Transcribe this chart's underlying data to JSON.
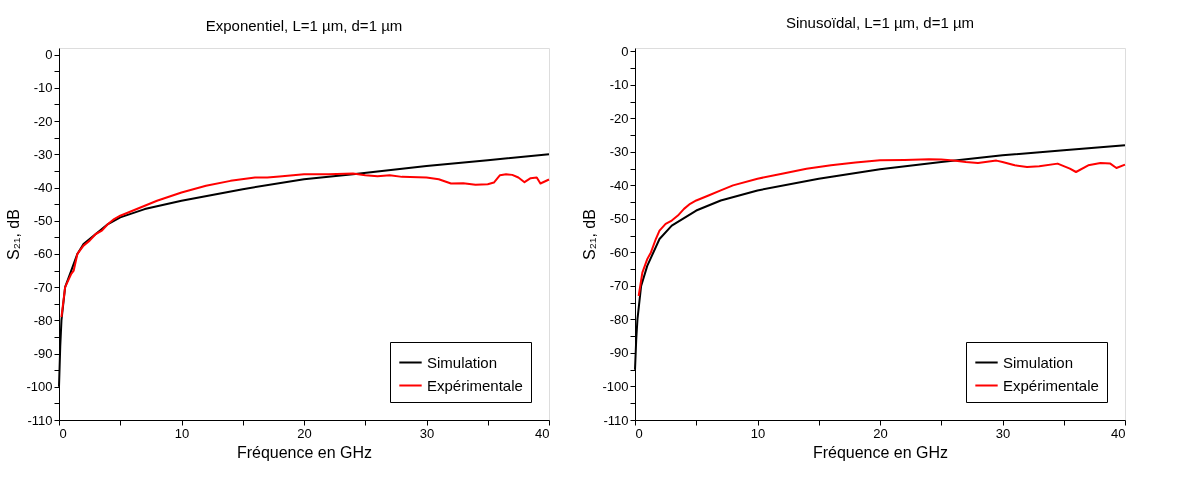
{
  "chart_data": [
    {
      "type": "line",
      "title": "Exponentiel, L=1 µm, d=1 µm",
      "xlabel": "Fréquence en GHz",
      "ylabel": "S₂₁, dB",
      "xlim": [
        0,
        40
      ],
      "ylim": [
        -110,
        2
      ],
      "xticks": [
        0,
        {
          "value": 5,
          "label": null
        },
        10,
        {
          "value": 15,
          "label": null
        },
        20,
        {
          "value": 25,
          "label": null
        },
        30,
        {
          "value": 35,
          "label": null
        },
        40
      ],
      "yticks": [
        -110,
        {
          "value": -105,
          "label": null
        },
        -100,
        {
          "value": -95,
          "label": null
        },
        -90,
        {
          "value": -85,
          "label": null
        },
        -80,
        {
          "value": -75,
          "label": null
        },
        -70,
        {
          "value": -65,
          "label": null
        },
        -60,
        {
          "value": -55,
          "label": null
        },
        -50,
        {
          "value": -45,
          "label": null
        },
        -40,
        {
          "value": -35,
          "label": null
        },
        -30,
        {
          "value": -25,
          "label": null
        },
        -20,
        {
          "value": -15,
          "label": null
        },
        -10,
        {
          "value": -5,
          "label": null
        },
        0
      ],
      "grid": false,
      "legend": "bottom right",
      "series": [
        {
          "name": "Simulation",
          "color": "#000000",
          "x": [
            0,
            0.1,
            0.2,
            0.5,
            1,
            1.5,
            2,
            3,
            4,
            5,
            7,
            10,
            15,
            20,
            24,
            30,
            35,
            40
          ],
          "values": [
            -100,
            -88,
            -80,
            -70,
            -65,
            -60,
            -57,
            -54,
            -51,
            -49,
            -46.5,
            -44,
            -40.5,
            -37.5,
            -36,
            -33.5,
            -31.8,
            -30
          ]
        },
        {
          "name": "Expérimentale",
          "color": "#ff0000",
          "x": [
            0.2,
            0.5,
            1,
            1.2,
            1.5,
            2,
            2.5,
            3,
            3.5,
            4,
            4.5,
            5,
            6,
            7,
            8,
            10,
            12,
            14,
            16,
            17,
            18,
            20,
            22,
            24,
            25,
            26,
            27,
            28,
            30,
            31,
            32,
            33,
            34,
            35,
            35.5,
            36,
            36.5,
            37,
            37.5,
            38,
            38.5,
            39,
            39.3,
            40
          ],
          "values": [
            -79,
            -70,
            -66,
            -65,
            -60,
            -57.5,
            -56,
            -54,
            -53,
            -51,
            -49.5,
            -48.5,
            -47,
            -45.5,
            -44,
            -41.5,
            -39.5,
            -38,
            -37,
            -37,
            -36.7,
            -36,
            -36,
            -35.8,
            -36.3,
            -36.6,
            -36.3,
            -36.8,
            -37,
            -37.5,
            -38.8,
            -38.7,
            -39.2,
            -39,
            -38.5,
            -36.3,
            -36,
            -36.2,
            -37,
            -38.4,
            -37.2,
            -37,
            -38.8,
            -37.6
          ]
        }
      ]
    },
    {
      "type": "line",
      "title": "Sinusoïdal, L=1 µm, d=1 µm",
      "xlabel": "Fréquence en GHz",
      "ylabel": "S₂₁, dB",
      "xlim": [
        0,
        40
      ],
      "ylim": [
        -110,
        1
      ],
      "xticks": [
        0,
        {
          "value": 5,
          "label": null
        },
        10,
        {
          "value": 15,
          "label": null
        },
        20,
        {
          "value": 25,
          "label": null
        },
        30,
        {
          "value": 35,
          "label": null
        },
        40
      ],
      "yticks": [
        -110,
        {
          "value": -105,
          "label": null
        },
        -100,
        {
          "value": -95,
          "label": null
        },
        -90,
        {
          "value": -85,
          "label": null
        },
        -80,
        {
          "value": -75,
          "label": null
        },
        -70,
        {
          "value": -65,
          "label": null
        },
        -60,
        {
          "value": -55,
          "label": null
        },
        -50,
        {
          "value": -45,
          "label": null
        },
        -40,
        {
          "value": -35,
          "label": null
        },
        -30,
        {
          "value": -25,
          "label": null
        },
        -20,
        {
          "value": -15,
          "label": null
        },
        -10,
        {
          "value": -5,
          "label": null
        },
        0
      ],
      "grid": false,
      "legend": "bottom right",
      "series": [
        {
          "name": "Simulation",
          "color": "#000000",
          "x": [
            0,
            0.1,
            0.2,
            0.5,
            1,
            2,
            3,
            5,
            7,
            10,
            15,
            20,
            25,
            30,
            35,
            40
          ],
          "values": [
            -95,
            -86,
            -80,
            -70,
            -64,
            -56,
            -52,
            -47.5,
            -44.5,
            -41.5,
            -38,
            -35.2,
            -33,
            -31,
            -29.5,
            -28
          ]
        },
        {
          "name": "Expérimentale",
          "color": "#ff0000",
          "x": [
            0.3,
            0.6,
            1,
            1.3,
            1.7,
            2,
            2.5,
            3,
            3.5,
            4,
            4.5,
            5,
            6,
            7,
            8,
            10,
            12,
            14,
            16,
            18,
            20,
            22,
            24,
            25,
            26,
            27,
            28,
            29.5,
            30,
            31,
            32,
            33,
            34.5,
            35.5,
            36,
            37,
            38,
            38.8,
            39.3,
            40
          ],
          "values": [
            -73,
            -66,
            -62,
            -60,
            -56,
            -53.5,
            -51.5,
            -50.5,
            -49,
            -47,
            -45.5,
            -44.5,
            -43,
            -41.5,
            -40,
            -38,
            -36.5,
            -35,
            -34,
            -33.2,
            -32.5,
            -32.4,
            -32.2,
            -32.3,
            -32.6,
            -33,
            -33.3,
            -32.6,
            -33,
            -34,
            -34.5,
            -34.3,
            -33.5,
            -35,
            -36,
            -34,
            -33.3,
            -33.5,
            -34.8,
            -33.8
          ]
        }
      ]
    }
  ]
}
